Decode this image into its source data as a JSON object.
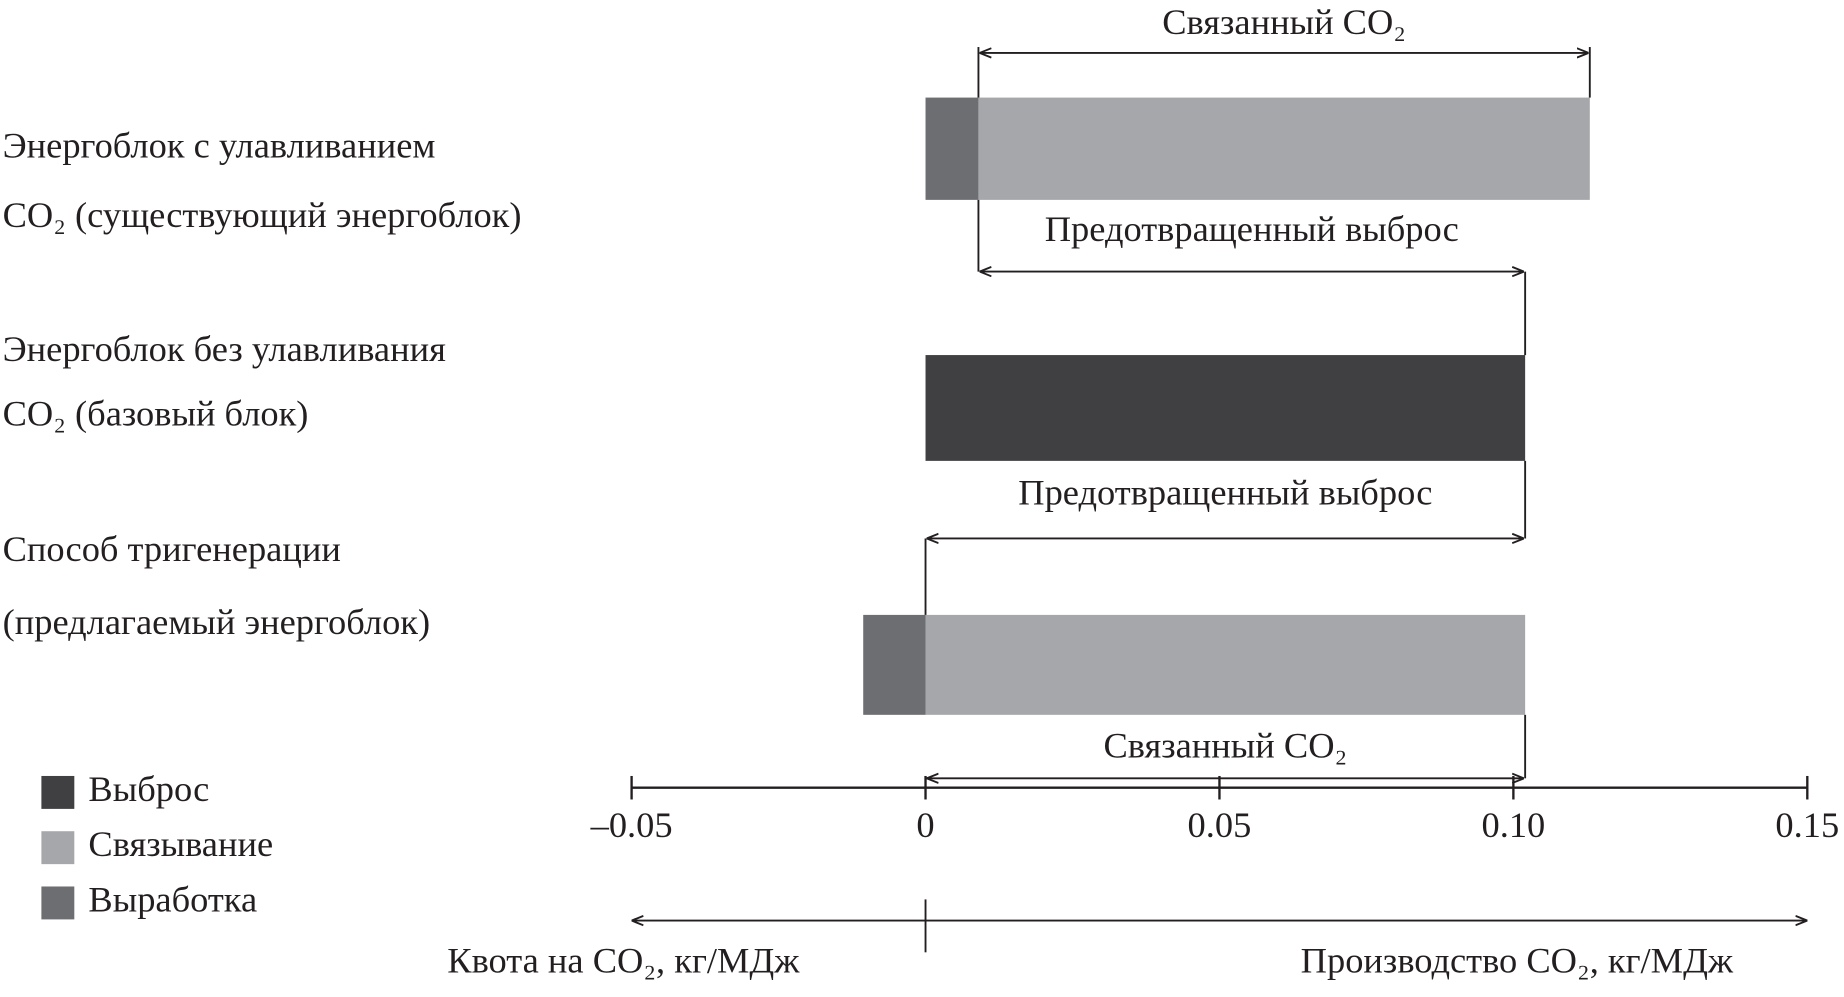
{
  "chart_data": {
    "type": "bar",
    "orientation": "horizontal",
    "stacked": true,
    "categories": [
      [
        "Энергоблок с улавливанием",
        "CO₂ (существующий энергоблок)"
      ],
      [
        "Энергоблок без улавливания",
        "CO₂ (базовый блок)"
      ],
      [
        "Способ тригенерации",
        "(предлагаемый энергоблок)"
      ]
    ],
    "series": [
      {
        "name": "Выброс",
        "color": "#404042",
        "values": [
          null,
          0.102,
          null
        ]
      },
      {
        "name": "Связывание",
        "color": "#a6a7aa",
        "values": [
          0.104,
          null,
          0.102
        ]
      },
      {
        "name": "Выработка",
        "color": "#6d6e71",
        "values": [
          0.009,
          null,
          -0.0106
        ]
      }
    ],
    "xlim": [
      -0.05,
      0.15
    ],
    "xticks": [
      {
        "value": -0.05,
        "label": "–0.05"
      },
      0,
      0.05,
      {
        "value": 0.1,
        "label": "0.10"
      },
      0.15
    ],
    "annotations": [
      {
        "text": "Связанный CO₂"
      },
      {
        "text": "Предотвращенный выброс"
      },
      {
        "text": "Предотвращенный выброс"
      },
      {
        "text": "Связанный CO₂"
      }
    ],
    "direction_labels": [
      "Квота на CO₂, кг/МДж",
      "Производство CO₂, кг/МДж"
    ]
  }
}
